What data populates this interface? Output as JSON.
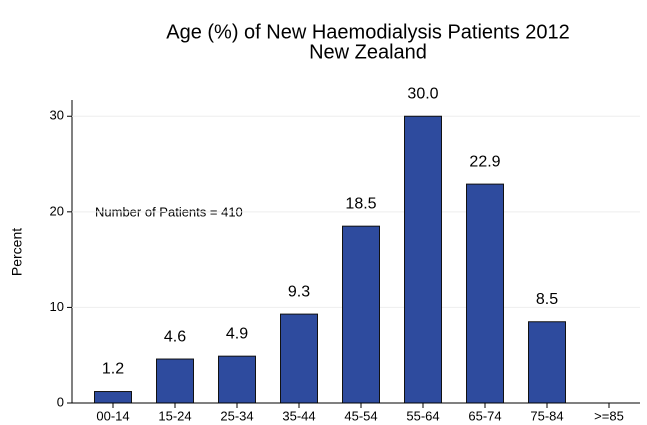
{
  "chart_data": {
    "type": "bar",
    "title": "Age (%) of New Haemodialysis Patients 2012",
    "subtitle": "New Zealand",
    "annotation": "Number of Patients = 410",
    "y_label": "Percent",
    "categories": [
      "00-14",
      "15-24",
      "25-34",
      "35-44",
      "45-54",
      "55-64",
      "65-74",
      "75-84",
      ">=85"
    ],
    "values": [
      1.2,
      4.6,
      4.9,
      9.3,
      18.5,
      30,
      22.9,
      8.5,
      null
    ],
    "value_labels": [
      "1.2",
      "4.6",
      "4.9",
      "9.3",
      "18.5",
      "30.0",
      "22.9",
      "8.5",
      null
    ],
    "color": "#2e4b9e",
    "ylim": [
      0,
      31.7
    ],
    "yticks": [
      0,
      10,
      20,
      30
    ],
    "grid": true
  }
}
